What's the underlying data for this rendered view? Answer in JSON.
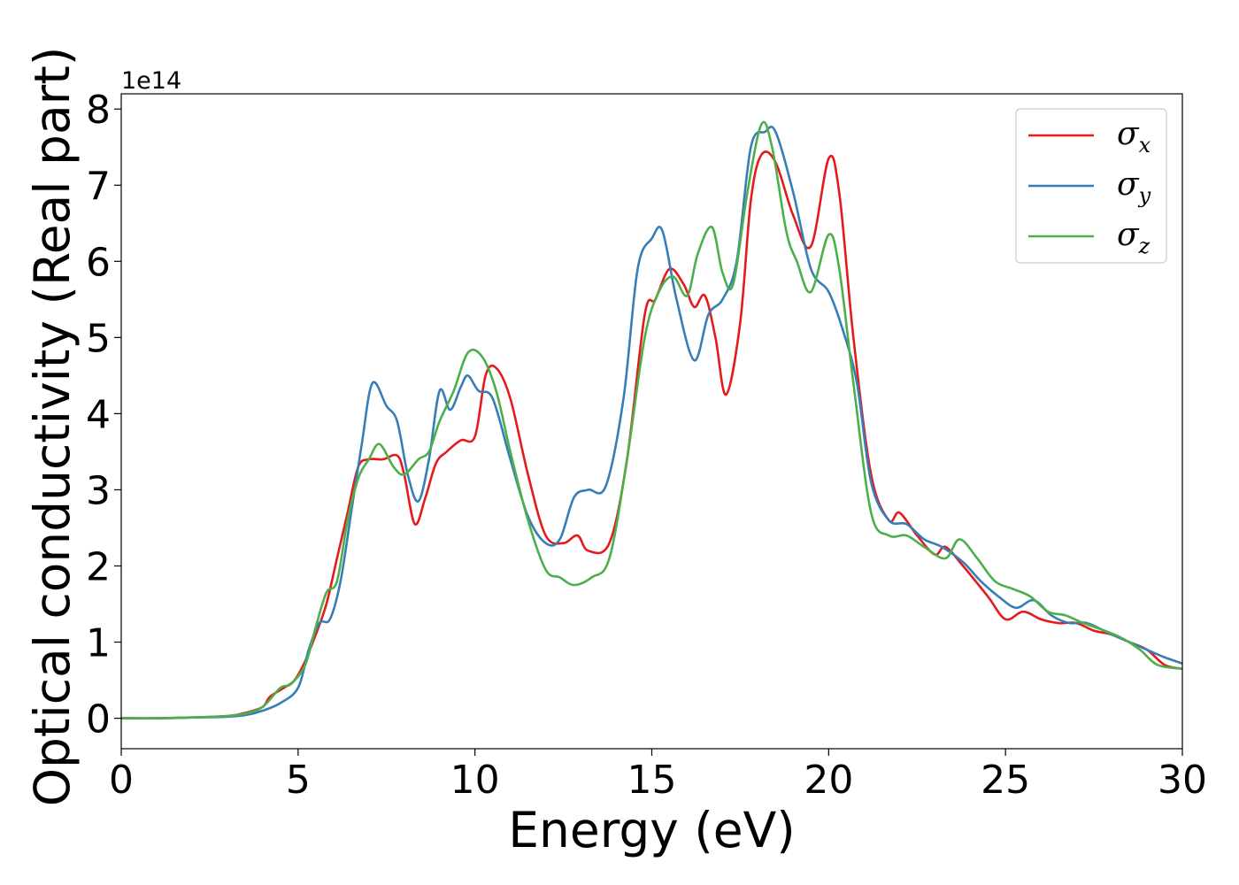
{
  "chart_data": {
    "type": "line",
    "title": "",
    "xlabel": "Energy (eV)",
    "ylabel": "Optical conductivity (Real part)",
    "y_offset_label": "1e14",
    "xlim": [
      0,
      30
    ],
    "ylim": [
      -0.4,
      8.2
    ],
    "xticks": [
      0,
      5,
      10,
      15,
      20,
      25,
      30
    ],
    "yticks": [
      0,
      1,
      2,
      3,
      4,
      5,
      6,
      7,
      8
    ],
    "grid": false,
    "legend_position": "top-right",
    "series": [
      {
        "name": "σx",
        "symbol": "σ",
        "subscript": "x",
        "color": "#e41a1c",
        "points": [
          [
            0,
            0
          ],
          [
            1,
            0
          ],
          [
            2,
            0.01
          ],
          [
            3,
            0.03
          ],
          [
            3.5,
            0.07
          ],
          [
            4,
            0.15
          ],
          [
            4.2,
            0.28
          ],
          [
            4.6,
            0.4
          ],
          [
            4.9,
            0.5
          ],
          [
            5.2,
            0.75
          ],
          [
            5.5,
            1.1
          ],
          [
            5.8,
            1.5
          ],
          [
            6.1,
            2.1
          ],
          [
            6.4,
            2.7
          ],
          [
            6.7,
            3.3
          ],
          [
            7.0,
            3.4
          ],
          [
            7.4,
            3.4
          ],
          [
            7.8,
            3.45
          ],
          [
            8.0,
            3.2
          ],
          [
            8.3,
            2.55
          ],
          [
            8.6,
            2.9
          ],
          [
            8.9,
            3.35
          ],
          [
            9.2,
            3.5
          ],
          [
            9.6,
            3.65
          ],
          [
            10.0,
            3.7
          ],
          [
            10.3,
            4.5
          ],
          [
            10.6,
            4.6
          ],
          [
            11.0,
            4.2
          ],
          [
            11.5,
            3.2
          ],
          [
            12.0,
            2.4
          ],
          [
            12.5,
            2.3
          ],
          [
            12.9,
            2.4
          ],
          [
            13.2,
            2.2
          ],
          [
            13.8,
            2.3
          ],
          [
            14.3,
            3.4
          ],
          [
            14.8,
            5.3
          ],
          [
            15.1,
            5.5
          ],
          [
            15.5,
            5.9
          ],
          [
            15.9,
            5.7
          ],
          [
            16.2,
            5.4
          ],
          [
            16.5,
            5.55
          ],
          [
            16.8,
            5.0
          ],
          [
            17.1,
            4.25
          ],
          [
            17.5,
            5.2
          ],
          [
            17.8,
            6.8
          ],
          [
            18.1,
            7.4
          ],
          [
            18.5,
            7.3
          ],
          [
            19.0,
            6.6
          ],
          [
            19.5,
            6.2
          ],
          [
            20.0,
            7.35
          ],
          [
            20.3,
            6.9
          ],
          [
            20.7,
            5.0
          ],
          [
            21.2,
            3.2
          ],
          [
            21.7,
            2.6
          ],
          [
            22.0,
            2.7
          ],
          [
            22.5,
            2.4
          ],
          [
            23.0,
            2.15
          ],
          [
            23.3,
            2.25
          ],
          [
            23.8,
            2.0
          ],
          [
            24.5,
            1.6
          ],
          [
            25.0,
            1.3
          ],
          [
            25.5,
            1.4
          ],
          [
            26.0,
            1.3
          ],
          [
            26.5,
            1.25
          ],
          [
            27.0,
            1.25
          ],
          [
            27.5,
            1.15
          ],
          [
            28.0,
            1.1
          ],
          [
            28.5,
            1.0
          ],
          [
            29.0,
            0.9
          ],
          [
            29.5,
            0.7
          ],
          [
            30.0,
            0.65
          ]
        ]
      },
      {
        "name": "σy",
        "symbol": "σ",
        "subscript": "y",
        "color": "#377eb8",
        "points": [
          [
            0,
            0
          ],
          [
            1,
            0
          ],
          [
            2,
            0.01
          ],
          [
            3,
            0.02
          ],
          [
            3.5,
            0.04
          ],
          [
            4,
            0.1
          ],
          [
            4.5,
            0.2
          ],
          [
            5.0,
            0.4
          ],
          [
            5.3,
            0.9
          ],
          [
            5.6,
            1.25
          ],
          [
            5.9,
            1.3
          ],
          [
            6.2,
            1.8
          ],
          [
            6.5,
            2.7
          ],
          [
            6.8,
            3.6
          ],
          [
            7.1,
            4.4
          ],
          [
            7.5,
            4.1
          ],
          [
            7.8,
            3.9
          ],
          [
            8.1,
            3.2
          ],
          [
            8.4,
            2.85
          ],
          [
            8.7,
            3.4
          ],
          [
            9.0,
            4.3
          ],
          [
            9.3,
            4.05
          ],
          [
            9.6,
            4.35
          ],
          [
            9.8,
            4.5
          ],
          [
            10.1,
            4.3
          ],
          [
            10.5,
            4.2
          ],
          [
            11.0,
            3.4
          ],
          [
            11.5,
            2.65
          ],
          [
            12.0,
            2.3
          ],
          [
            12.4,
            2.35
          ],
          [
            12.8,
            2.9
          ],
          [
            13.2,
            3.0
          ],
          [
            13.7,
            3.05
          ],
          [
            14.2,
            4.2
          ],
          [
            14.6,
            5.9
          ],
          [
            15.0,
            6.3
          ],
          [
            15.3,
            6.4
          ],
          [
            15.7,
            5.5
          ],
          [
            16.2,
            4.7
          ],
          [
            16.6,
            5.3
          ],
          [
            17.0,
            5.5
          ],
          [
            17.4,
            6.0
          ],
          [
            17.8,
            7.5
          ],
          [
            18.2,
            7.7
          ],
          [
            18.5,
            7.7
          ],
          [
            19.0,
            6.9
          ],
          [
            19.5,
            5.9
          ],
          [
            20.0,
            5.6
          ],
          [
            20.4,
            5.1
          ],
          [
            20.8,
            4.4
          ],
          [
            21.2,
            3.1
          ],
          [
            21.7,
            2.6
          ],
          [
            22.2,
            2.55
          ],
          [
            22.7,
            2.35
          ],
          [
            23.2,
            2.25
          ],
          [
            23.8,
            2.05
          ],
          [
            24.3,
            1.8
          ],
          [
            24.8,
            1.6
          ],
          [
            25.3,
            1.45
          ],
          [
            25.8,
            1.55
          ],
          [
            26.3,
            1.35
          ],
          [
            26.8,
            1.25
          ],
          [
            27.3,
            1.25
          ],
          [
            28.0,
            1.1
          ],
          [
            28.5,
            1.0
          ],
          [
            29.0,
            0.9
          ],
          [
            29.5,
            0.8
          ],
          [
            30.0,
            0.72
          ]
        ]
      },
      {
        "name": "σz",
        "symbol": "σ",
        "subscript": "z",
        "color": "#4daf4a",
        "points": [
          [
            0,
            0
          ],
          [
            1,
            0
          ],
          [
            2,
            0.01
          ],
          [
            3,
            0.03
          ],
          [
            3.5,
            0.06
          ],
          [
            4,
            0.15
          ],
          [
            4.5,
            0.4
          ],
          [
            4.8,
            0.45
          ],
          [
            5.2,
            0.7
          ],
          [
            5.5,
            1.2
          ],
          [
            5.8,
            1.65
          ],
          [
            6.1,
            1.8
          ],
          [
            6.4,
            2.6
          ],
          [
            6.7,
            3.15
          ],
          [
            7.0,
            3.4
          ],
          [
            7.3,
            3.6
          ],
          [
            7.7,
            3.3
          ],
          [
            8.0,
            3.2
          ],
          [
            8.4,
            3.4
          ],
          [
            8.7,
            3.5
          ],
          [
            9.0,
            3.9
          ],
          [
            9.4,
            4.3
          ],
          [
            9.8,
            4.8
          ],
          [
            10.2,
            4.75
          ],
          [
            10.6,
            4.3
          ],
          [
            11.0,
            3.5
          ],
          [
            11.5,
            2.6
          ],
          [
            12.0,
            1.95
          ],
          [
            12.4,
            1.85
          ],
          [
            12.8,
            1.75
          ],
          [
            13.3,
            1.85
          ],
          [
            13.8,
            2.1
          ],
          [
            14.3,
            3.4
          ],
          [
            14.8,
            5.0
          ],
          [
            15.2,
            5.6
          ],
          [
            15.6,
            5.8
          ],
          [
            16.0,
            5.55
          ],
          [
            16.3,
            6.1
          ],
          [
            16.7,
            6.45
          ],
          [
            17.0,
            5.85
          ],
          [
            17.3,
            5.7
          ],
          [
            17.7,
            6.9
          ],
          [
            18.1,
            7.8
          ],
          [
            18.4,
            7.5
          ],
          [
            18.8,
            6.4
          ],
          [
            19.1,
            6.0
          ],
          [
            19.5,
            5.6
          ],
          [
            20.0,
            6.35
          ],
          [
            20.3,
            5.9
          ],
          [
            20.7,
            4.4
          ],
          [
            21.2,
            2.7
          ],
          [
            21.7,
            2.4
          ],
          [
            22.2,
            2.4
          ],
          [
            22.7,
            2.25
          ],
          [
            23.3,
            2.1
          ],
          [
            23.7,
            2.35
          ],
          [
            24.2,
            2.1
          ],
          [
            24.7,
            1.8
          ],
          [
            25.2,
            1.7
          ],
          [
            25.7,
            1.6
          ],
          [
            26.2,
            1.4
          ],
          [
            26.7,
            1.35
          ],
          [
            27.2,
            1.25
          ],
          [
            27.8,
            1.15
          ],
          [
            28.3,
            1.05
          ],
          [
            28.8,
            0.9
          ],
          [
            29.3,
            0.7
          ],
          [
            30.0,
            0.65
          ]
        ]
      }
    ]
  }
}
